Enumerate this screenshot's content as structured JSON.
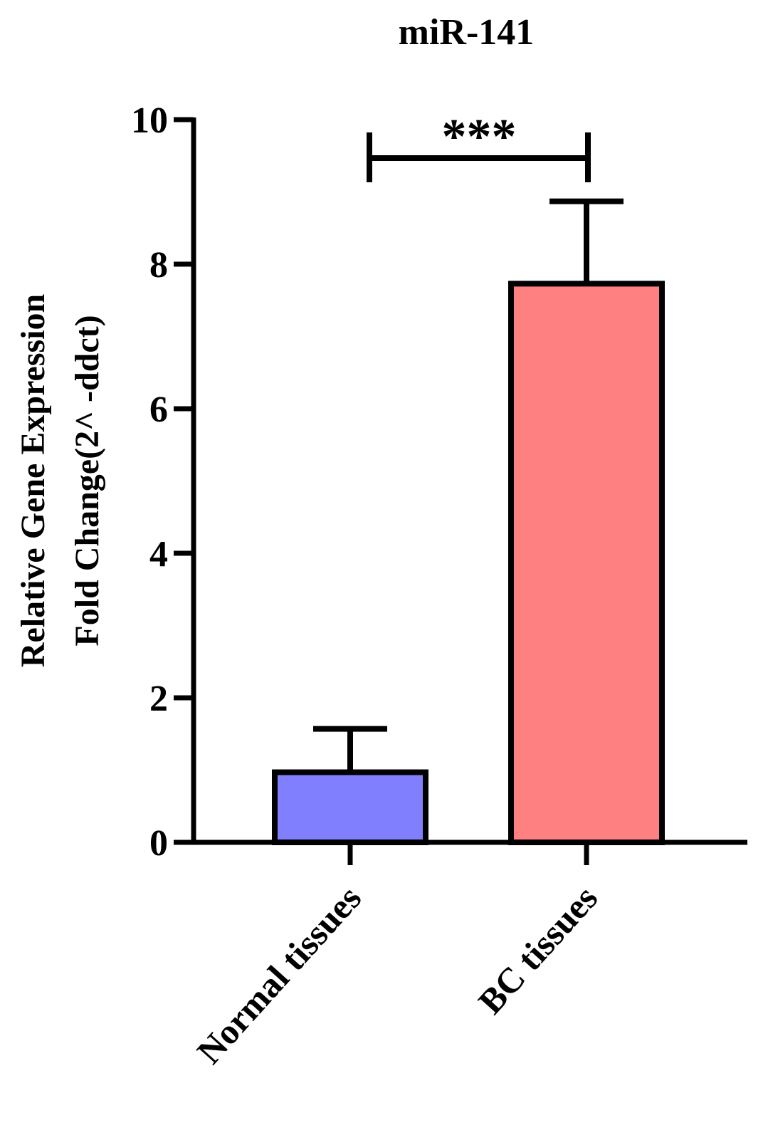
{
  "chart_data": {
    "type": "bar",
    "title": "miR-141",
    "y_label": [
      "Relative Gene Expression",
      "Fold Change(2^ -ddct)"
    ],
    "categories": [
      "Normal tissues",
      "BC tissues"
    ],
    "values": [
      0.97,
      7.73
    ],
    "errors": [
      0.6,
      1.14
    ],
    "colors": [
      "#8080ff",
      "#ff8080"
    ],
    "ylim": [
      0,
      10
    ],
    "yticks": [
      0,
      2,
      4,
      6,
      8,
      10
    ],
    "annotation": "***"
  }
}
